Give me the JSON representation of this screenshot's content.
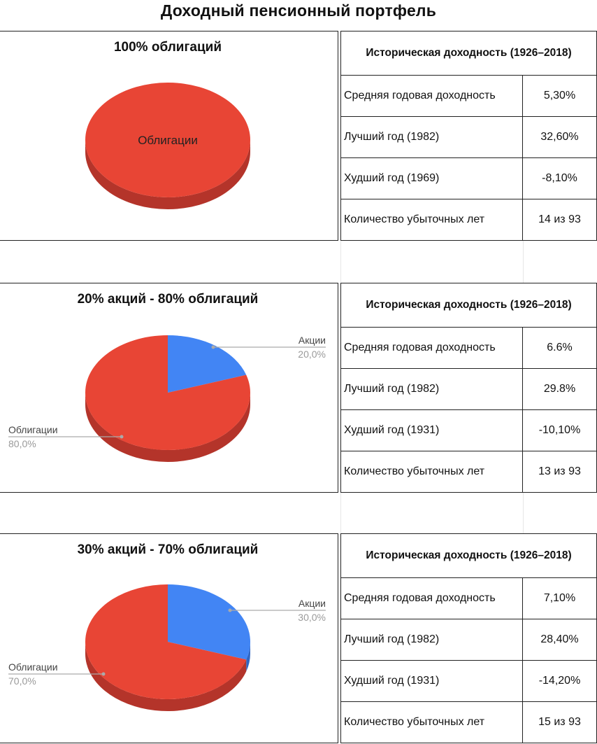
{
  "page_title": "Доходный пенсионный портфель",
  "colors": {
    "bonds": "#e84535",
    "bonds_side": "#b4342a",
    "stocks": "#4285f4",
    "stocks_side": "#2f66c4"
  },
  "chart_data": [
    {
      "type": "pie",
      "title": "100% облигаций",
      "slices": [
        {
          "name": "Облигации",
          "value": 100,
          "label": "Облигации"
        }
      ]
    },
    {
      "type": "pie",
      "title": "20% акций - 80% облигаций",
      "slices": [
        {
          "name": "Акции",
          "value": 20,
          "label": "20,0%"
        },
        {
          "name": "Облигации",
          "value": 80,
          "label": "80,0%"
        }
      ]
    },
    {
      "type": "pie",
      "title": "30% акций - 70% облигаций",
      "slices": [
        {
          "name": "Акции",
          "value": 30,
          "label": "30,0%"
        },
        {
          "name": "Облигации",
          "value": 70,
          "label": "70,0%"
        }
      ]
    }
  ],
  "tables": [
    {
      "header": "Историческая доходность (1926–2018)",
      "rows": [
        {
          "label": "Средняя годовая доходность",
          "value": "5,30%"
        },
        {
          "label": "Лучший год (1982)",
          "value": "32,60%"
        },
        {
          "label": "Худший год (1969)",
          "value": "-8,10%"
        },
        {
          "label": "Количество убыточных лет",
          "value": "14 из 93"
        }
      ]
    },
    {
      "header": "Историческая доходность (1926–2018)",
      "rows": [
        {
          "label": "Средняя годовая доходность",
          "value": "6.6%"
        },
        {
          "label": "Лучший год (1982)",
          "value": "29.8%"
        },
        {
          "label": "Худший год (1931)",
          "value": "-10,10%"
        },
        {
          "label": "Количество убыточных лет",
          "value": "13 из 93"
        }
      ]
    },
    {
      "header": "Историческая доходность (1926–2018)",
      "rows": [
        {
          "label": "Средняя годовая доходность",
          "value": "7,10%"
        },
        {
          "label": "Лучший год (1982)",
          "value": "28,40%"
        },
        {
          "label": "Худший год (1931)",
          "value": "-14,20%"
        },
        {
          "label": "Количество убыточных лет",
          "value": "15 из 93"
        }
      ]
    }
  ]
}
